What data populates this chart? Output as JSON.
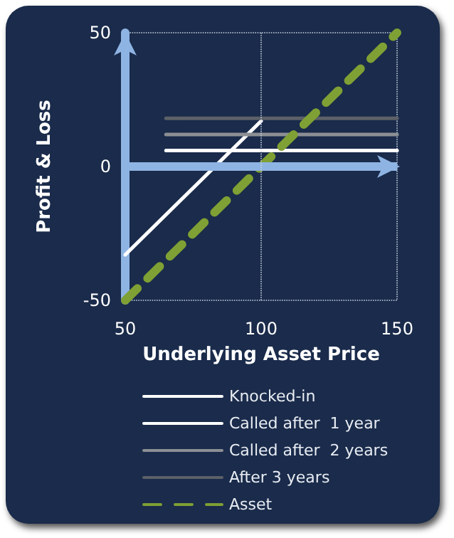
{
  "chart_data": {
    "type": "line",
    "xlabel": "Underlying Asset Price",
    "ylabel": "Profit & Loss",
    "xlim": [
      50,
      150
    ],
    "xticks": [
      50,
      100,
      150
    ],
    "ylim": [
      -50,
      50
    ],
    "yticks": [
      -50,
      0,
      50
    ],
    "legend": "bottom",
    "marker": "none",
    "ref_lines": [
      {
        "axis": "y",
        "value": 0,
        "color": "#8eb4e3",
        "line_style": "solid"
      },
      {
        "axis": "x",
        "value": 100,
        "color": "#c8d4e4",
        "line_style": "dotted"
      }
    ],
    "series": [
      {
        "name": "Knocked-in",
        "color": "#ffffff",
        "x": [
          50,
          100
        ],
        "values": [
          -33,
          17
        ]
      },
      {
        "name": "Called after  1 year",
        "color": "#ffffff",
        "x": [
          65,
          150
        ],
        "values": [
          6,
          6
        ]
      },
      {
        "name": "Called after  2 years",
        "color": "#8c8f94",
        "x": [
          65,
          150
        ],
        "values": [
          12,
          12
        ]
      },
      {
        "name": "After 3 years",
        "color": "#5c6168",
        "x": [
          65,
          150
        ],
        "values": [
          18,
          18
        ]
      },
      {
        "name": "Asset",
        "color": "#7fa034",
        "line_style": "dashed",
        "x": [
          50,
          150
        ],
        "values": [
          -50,
          50
        ]
      }
    ]
  }
}
